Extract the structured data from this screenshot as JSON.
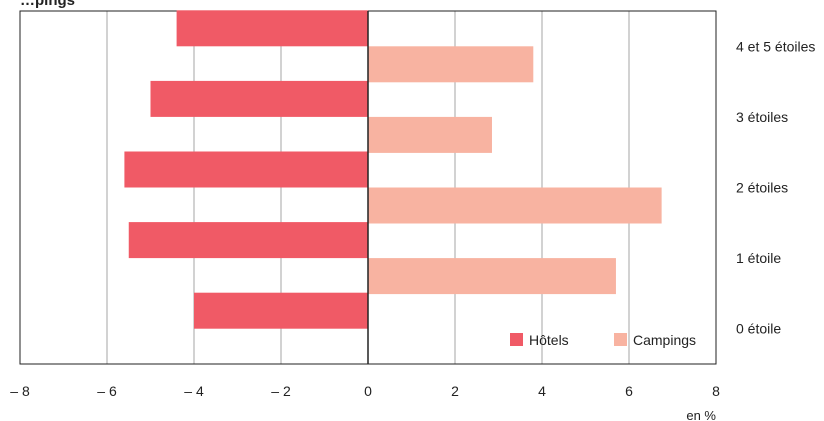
{
  "chart_data": {
    "type": "bar",
    "orientation": "horizontal",
    "title": "…pings",
    "unit_label": "en %",
    "categories": [
      "4 et 5 étoiles",
      "3 étoiles",
      "2 étoiles",
      "1 étoile",
      "0 étoile"
    ],
    "series": [
      {
        "name": "Hôtels",
        "color": "#f05a66",
        "values": [
          -4.4,
          -5.0,
          -5.6,
          -5.5,
          -4.0
        ]
      },
      {
        "name": "Campings",
        "color": "#f8b3a1",
        "values": [
          3.8,
          2.85,
          6.75,
          5.7,
          null
        ]
      }
    ],
    "xlim": [
      -8,
      8
    ],
    "xticks": [
      -8,
      -6,
      -4,
      -2,
      0,
      2,
      4,
      6,
      8
    ],
    "xtick_labels": [
      "– 8",
      "– 6",
      "– 4",
      "– 2",
      "0",
      "2",
      "4",
      "6",
      "8"
    ],
    "grid": "vertical",
    "legend_position": "bottom-right"
  }
}
